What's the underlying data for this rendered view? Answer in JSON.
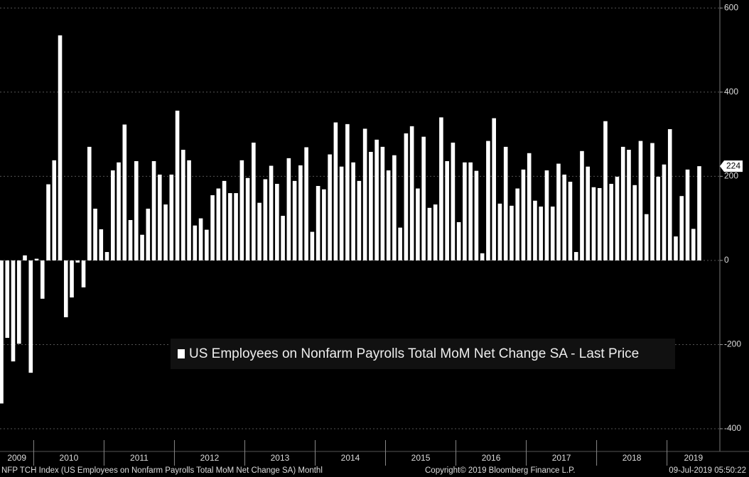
{
  "chart_data": {
    "type": "bar",
    "series_name": "US Employees on Nonfarm Payrolls Total MoM Net Change SA - Last Price",
    "color": "#ffffff",
    "year_labels": [
      "2009",
      "2010",
      "2011",
      "2012",
      "2013",
      "2014",
      "2015",
      "2016",
      "2017",
      "2018",
      "2019"
    ],
    "values": [
      -340,
      -184,
      -240,
      -198,
      12,
      -267,
      4,
      -91,
      181,
      238,
      535,
      -135,
      -88,
      -5,
      -64,
      270,
      123,
      74,
      20,
      214,
      233,
      323,
      96,
      236,
      61,
      123,
      236,
      204,
      133,
      204,
      356,
      263,
      238,
      83,
      100,
      73,
      155,
      171,
      189,
      160,
      160,
      238,
      196,
      280,
      137,
      193,
      225,
      182,
      106,
      243,
      189,
      226,
      269,
      68,
      177,
      169,
      252,
      328,
      223,
      324,
      233,
      189,
      313,
      258,
      287,
      270,
      214,
      250,
      78,
      302,
      319,
      171,
      294,
      125,
      133,
      340,
      236,
      280,
      91,
      233,
      233,
      213,
      17,
      284,
      338,
      135,
      270,
      130,
      171,
      216,
      255,
      142,
      128,
      214,
      128,
      230,
      204,
      187,
      20,
      260,
      223,
      174,
      172,
      331,
      182,
      199,
      270,
      263,
      179,
      284,
      110,
      279,
      199,
      228,
      312,
      57,
      153,
      216,
      75,
      224
    ],
    "ylim": [
      -454,
      619
    ],
    "yticks": [
      -400,
      -200,
      0,
      200,
      400,
      600
    ],
    "grid": true,
    "footer_left": "NFP TCH Index (US Employees on Nonfarm Payrolls Total MoM Net Change SA)  Monthl",
    "footer_center": "Copyright© 2019 Bloomberg Finance L.P.",
    "footer_right": "09-Jul-2019 05:50:22"
  }
}
